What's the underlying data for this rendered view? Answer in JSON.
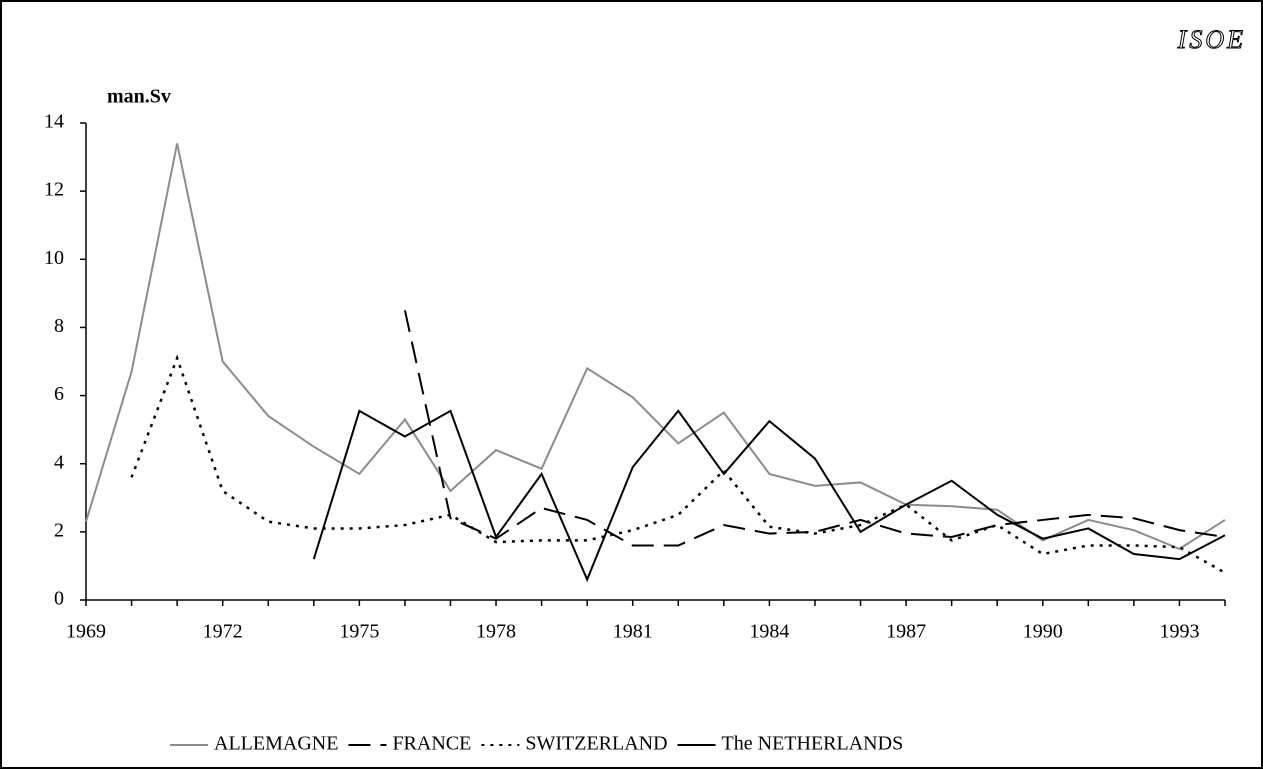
{
  "chart_data": {
    "type": "line",
    "y_label": "man.Sv",
    "watermark": "ISOE",
    "x": [
      1969,
      1970,
      1971,
      1972,
      1973,
      1974,
      1975,
      1976,
      1977,
      1978,
      1979,
      1980,
      1981,
      1982,
      1983,
      1984,
      1985,
      1986,
      1987,
      1988,
      1989,
      1990,
      1991,
      1992,
      1993,
      1994
    ],
    "xlim": [
      1969,
      1994
    ],
    "xticks": [
      1969,
      1972,
      1975,
      1978,
      1981,
      1984,
      1987,
      1990,
      1993
    ],
    "ylim": [
      0,
      14
    ],
    "yticks": [
      0,
      2,
      4,
      6,
      8,
      10,
      12,
      14
    ],
    "legend": "bottom",
    "series": [
      {
        "name": "ALLEMAGNE",
        "color": "#8c8c8c",
        "linestyle": "solid",
        "values": [
          2.3,
          6.7,
          13.4,
          7.0,
          5.4,
          4.5,
          3.7,
          5.3,
          3.2,
          4.4,
          3.85,
          6.8,
          5.95,
          4.6,
          5.5,
          3.7,
          3.35,
          3.45,
          2.8,
          2.75,
          2.65,
          1.75,
          2.35,
          2.05,
          1.5,
          2.35
        ]
      },
      {
        "name": "FRANCE",
        "color": "#000000",
        "linestyle": "dashed",
        "values": [
          null,
          null,
          null,
          null,
          null,
          null,
          null,
          8.5,
          2.4,
          1.8,
          2.7,
          2.35,
          1.6,
          1.6,
          2.2,
          1.95,
          2.0,
          2.35,
          1.95,
          1.85,
          2.2,
          2.35,
          2.5,
          2.4,
          2.05,
          1.85
        ]
      },
      {
        "name": "SWITZERLAND",
        "color": "#000000",
        "linestyle": "dotted",
        "values": [
          null,
          3.6,
          7.1,
          3.2,
          2.3,
          2.1,
          2.1,
          2.2,
          2.5,
          1.7,
          1.75,
          1.75,
          2.05,
          2.5,
          3.8,
          2.15,
          1.95,
          2.2,
          2.8,
          1.75,
          2.2,
          1.35,
          1.6,
          1.6,
          1.55,
          0.8
        ]
      },
      {
        "name": "The NETHERLANDS",
        "color": "#000000",
        "linestyle": "solid",
        "values": [
          null,
          null,
          null,
          null,
          null,
          1.2,
          5.55,
          4.8,
          5.55,
          1.85,
          3.7,
          0.6,
          3.9,
          5.55,
          3.7,
          5.25,
          4.15,
          2.0,
          2.8,
          3.5,
          2.5,
          1.8,
          2.1,
          1.35,
          1.2,
          1.9
        ]
      }
    ]
  }
}
